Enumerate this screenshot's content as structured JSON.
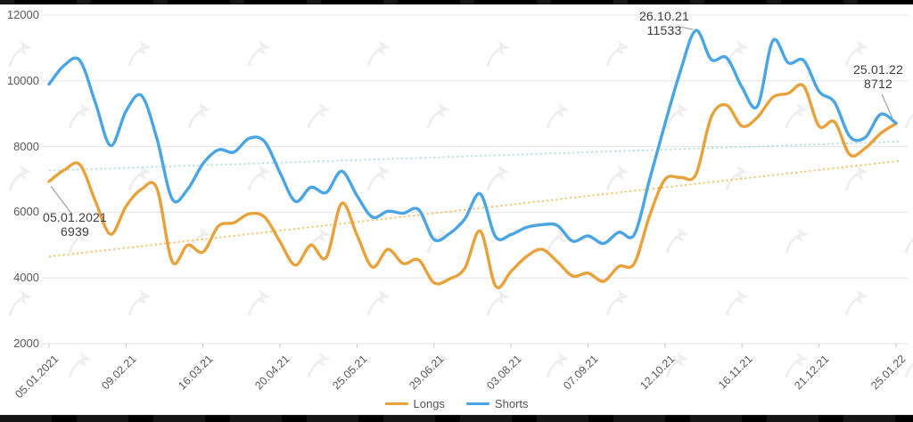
{
  "chart_data": {
    "type": "line",
    "title": "",
    "xlabel": "",
    "ylabel": "",
    "ylim": [
      2000,
      12000
    ],
    "grid": "horizontal",
    "legend_position": "bottom-center",
    "y_tick_labels": [
      "12000",
      "10000",
      "8000",
      "6000",
      "4000",
      "2000"
    ],
    "y_tick_values": [
      12000,
      10000,
      8000,
      6000,
      4000,
      2000
    ],
    "x_tick_labels": [
      "05.01.2021",
      "09.02.21",
      "16.03.21",
      "20.04.21",
      "25.05.21",
      "29.06.21",
      "03.08.21",
      "07.09.21",
      "12.10.21",
      "16.11.21",
      "21.12.21",
      "25.01.22"
    ],
    "x_resolution": "weekly, 56 points from 05.01.2021 to 25.01.2022",
    "series": [
      {
        "name": "Longs",
        "color": "#e9a23b",
        "values": [
          6939,
          7290,
          7450,
          6350,
          5330,
          6180,
          6700,
          6730,
          4500,
          5000,
          4790,
          5580,
          5680,
          5950,
          5850,
          5100,
          4390,
          5000,
          4620,
          6270,
          5300,
          4330,
          4870,
          4440,
          4550,
          3850,
          3970,
          4300,
          5430,
          3750,
          4200,
          4650,
          4870,
          4500,
          4060,
          4150,
          3900,
          4350,
          4440,
          5900,
          7000,
          7060,
          7150,
          8900,
          9260,
          8620,
          8890,
          9500,
          9620,
          9840,
          8620,
          8750,
          7750,
          7950,
          8400,
          8700
        ]
      },
      {
        "name": "Shorts",
        "color": "#49a5e6",
        "values": [
          9900,
          10480,
          10620,
          9350,
          8030,
          9080,
          9550,
          8250,
          6400,
          6700,
          7480,
          7900,
          7830,
          8250,
          8150,
          7200,
          6330,
          6760,
          6600,
          7250,
          6500,
          5850,
          6030,
          5970,
          6080,
          5170,
          5350,
          5800,
          6560,
          5250,
          5320,
          5540,
          5620,
          5600,
          5120,
          5280,
          5050,
          5390,
          5320,
          7000,
          8700,
          10300,
          11533,
          10650,
          10700,
          9800,
          9230,
          11220,
          10550,
          10620,
          9680,
          9350,
          8300,
          8280,
          8980,
          8712
        ]
      }
    ],
    "trendlines": [
      {
        "series": "Longs",
        "color": "#f2b94e",
        "start_value": 4650,
        "end_value": 7560,
        "style": "dotted"
      },
      {
        "series": "Shorts",
        "color": "#a6dbe2",
        "start_value": 7270,
        "end_value": 8150,
        "style": "dotted"
      }
    ],
    "annotations": [
      {
        "series": "Shorts",
        "point_index": 42,
        "date": "26.10.21",
        "value": "11533"
      },
      {
        "series": "Shorts",
        "point_index": 55,
        "date": "25.01.22",
        "value": "8712"
      },
      {
        "series": "Longs",
        "point_index": 0,
        "date": "05.01.2021",
        "value": "6939"
      }
    ],
    "legend": [
      {
        "label": "Longs",
        "color": "#e9a23b"
      },
      {
        "label": "Shorts",
        "color": "#49a5e6"
      }
    ]
  },
  "colors": {
    "background": "#ffffff",
    "gridline": "#e4e4e4",
    "axis_text": "#595959",
    "annotation_text": "#3d3d3d",
    "leader_line": "#a0a0a0",
    "border_bars": "#000000",
    "watermark": "#efefef"
  },
  "watermark": {
    "icon": "forklog-logo"
  }
}
